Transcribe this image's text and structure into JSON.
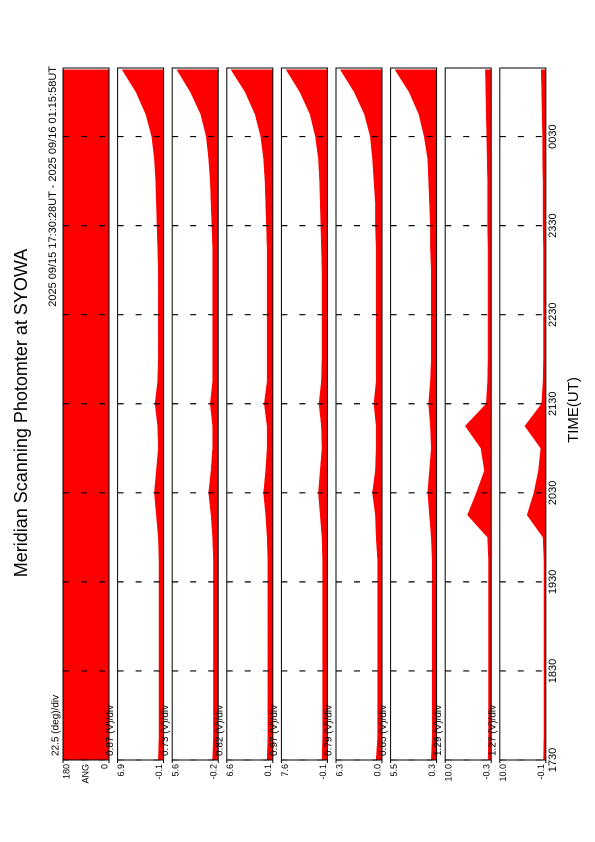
{
  "chart_data": {
    "type": "area",
    "title": "Meridian Scanning Photomter at SYOWA",
    "subtitle": "2025 09/15 17:30:28UT - 2025 09/16 01:15:58UT",
    "xlabel": "TIME(UT)",
    "x": [
      17.5,
      17.75,
      18,
      18.25,
      18.5,
      18.75,
      19,
      19.25,
      19.5,
      19.75,
      20,
      20.25,
      20.5,
      20.75,
      21,
      21.25,
      21.5,
      21.75,
      22,
      22.25,
      22.5,
      22.75,
      23,
      23.25,
      23.5,
      23.75,
      24,
      24.25,
      24.5,
      24.75,
      25,
      25.25
    ],
    "xlim": [
      17.5,
      25.27
    ],
    "xticks": [
      {
        "value": 17.5,
        "label": "1730"
      },
      {
        "value": 18.5,
        "label": "1830"
      },
      {
        "value": 19.5,
        "label": "1930"
      },
      {
        "value": 20.5,
        "label": "2030"
      },
      {
        "value": 21.5,
        "label": "2130"
      },
      {
        "value": 22.5,
        "label": "2230"
      },
      {
        "value": 23.5,
        "label": "2330"
      },
      {
        "value": 24.5,
        "label": "0030"
      }
    ],
    "color": "#ff0000",
    "panels": [
      {
        "ylabel": "ANG",
        "scale_label": "22.5 (deg)/div",
        "ylim": [
          0,
          180
        ],
        "yticks": [
          180,
          0
        ],
        "values": [
          180,
          180,
          180,
          180,
          180,
          180,
          180,
          180,
          180,
          180,
          180,
          180,
          180,
          180,
          180,
          180,
          180,
          180,
          180,
          180,
          180,
          180,
          180,
          180,
          180,
          180,
          180,
          180,
          180,
          180,
          180,
          180
        ]
      },
      {
        "scale_label": "0.87 (V)/div",
        "ylim": [
          -0.1,
          6.9
        ],
        "yticks": [
          6.9,
          -0.1
        ],
        "values": [
          0.7,
          0.6,
          0.6,
          0.6,
          0.6,
          0.6,
          0.6,
          0.6,
          0.6,
          0.6,
          0.7,
          1.0,
          1.3,
          1.0,
          0.7,
          0.8,
          1.2,
          0.8,
          0.7,
          0.7,
          0.7,
          0.7,
          0.7,
          0.8,
          0.9,
          1.0,
          1.1,
          1.3,
          1.7,
          2.6,
          4.1,
          6.2
        ]
      },
      {
        "scale_label": "0.73 (V)/div",
        "ylim": [
          -0.2,
          5.6
        ],
        "yticks": [
          5.6,
          -0.2
        ],
        "values": [
          0.5,
          0.4,
          0.4,
          0.4,
          0.4,
          0.4,
          0.4,
          0.4,
          0.4,
          0.4,
          0.5,
          0.7,
          1.0,
          0.7,
          0.5,
          0.5,
          0.8,
          0.5,
          0.5,
          0.5,
          0.5,
          0.5,
          0.5,
          0.5,
          0.6,
          0.7,
          0.8,
          1.0,
          1.3,
          2.0,
          3.3,
          5.0
        ]
      },
      {
        "scale_label": "0.82 (V)/div",
        "ylim": [
          0.1,
          6.6
        ],
        "yticks": [
          6.6,
          0.1
        ],
        "values": [
          0.9,
          0.8,
          0.8,
          0.8,
          0.8,
          0.8,
          0.8,
          0.8,
          0.8,
          0.8,
          0.9,
          1.1,
          1.4,
          1.1,
          0.9,
          0.9,
          1.3,
          0.9,
          0.9,
          0.9,
          0.9,
          0.9,
          0.9,
          0.9,
          1.0,
          1.1,
          1.2,
          1.4,
          1.8,
          2.6,
          4.0,
          6.0
        ]
      },
      {
        "scale_label": "0.97 (V)/div",
        "ylim": [
          -0.1,
          7.6
        ],
        "yticks": [
          7.6,
          -0.1
        ],
        "values": [
          0.8,
          0.7,
          0.7,
          0.7,
          0.7,
          0.7,
          0.7,
          0.7,
          0.7,
          0.7,
          0.8,
          1.1,
          1.4,
          1.1,
          0.8,
          0.9,
          1.3,
          0.9,
          0.8,
          0.8,
          0.8,
          0.8,
          0.8,
          0.9,
          1.0,
          1.1,
          1.2,
          1.4,
          1.9,
          2.8,
          4.5,
          6.8
        ]
      },
      {
        "scale_label": "0.79 (V)/div",
        "ylim": [
          0,
          6.3
        ],
        "yticks": [
          6.3,
          {
            "value": 0,
            "label": "0.0"
          }
        ],
        "values": [
          0.8,
          0.6,
          0.6,
          0.6,
          0.6,
          0.6,
          0.6,
          0.6,
          0.6,
          0.6,
          0.8,
          0.9,
          1.3,
          0.9,
          0.8,
          0.8,
          1.1,
          0.8,
          0.8,
          0.8,
          0.8,
          0.8,
          0.8,
          0.8,
          0.9,
          0.9,
          1.1,
          1.3,
          1.6,
          2.4,
          3.8,
          5.7
        ]
      },
      {
        "scale_label": "0.65 (V)/div",
        "ylim": [
          0.3,
          5.5
        ],
        "yticks": [
          5.5,
          0.3
        ],
        "values": [
          0.9,
          0.8,
          0.8,
          0.8,
          0.8,
          0.8,
          0.8,
          0.8,
          0.8,
          0.8,
          0.9,
          1.1,
          1.3,
          1.1,
          0.9,
          1.0,
          1.2,
          1.0,
          0.9,
          0.9,
          0.9,
          0.9,
          0.9,
          1.0,
          1.0,
          1.1,
          1.2,
          1.3,
          1.7,
          2.3,
          3.4,
          5.0
        ]
      },
      {
        "scale_label": "1.29 (V)/div",
        "ylim": [
          -0.3,
          10
        ],
        "yticks": [
          {
            "value": 10,
            "label": "10.0"
          },
          -0.3
        ],
        "values": [
          0.4,
          0.3,
          0.3,
          0.3,
          0.3,
          0.3,
          0.3,
          0.3,
          0.3,
          0.3,
          0.5,
          5.0,
          3.0,
          1.2,
          2.0,
          5.5,
          0.8,
          0.5,
          0.4,
          0.4,
          0.4,
          0.4,
          0.4,
          0.4,
          0.5,
          0.5,
          0.5,
          0.6,
          0.7,
          0.8,
          0.9,
          1.0
        ]
      },
      {
        "scale_label": "1.27 (V)/div",
        "ylim": [
          -0.1,
          10
        ],
        "yticks": [
          {
            "value": 10,
            "label": "10.0"
          },
          -0.1
        ],
        "values": [
          0.4,
          0.3,
          0.3,
          0.3,
          0.3,
          0.3,
          0.3,
          0.3,
          0.3,
          0.3,
          0.5,
          4.0,
          2.5,
          1.5,
          1.0,
          4.5,
          0.8,
          0.5,
          0.4,
          0.4,
          0.4,
          0.4,
          0.4,
          0.4,
          0.5,
          0.5,
          0.5,
          0.6,
          0.6,
          0.7,
          0.8,
          0.9
        ]
      }
    ]
  }
}
